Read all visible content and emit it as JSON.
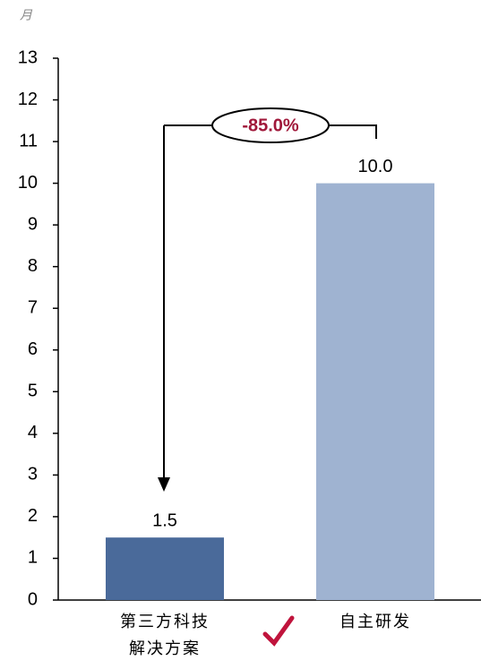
{
  "chart_data": {
    "type": "bar",
    "subtitle": "月",
    "categories": [
      "第三方科技\n解决方案",
      "自主研发"
    ],
    "values": [
      1.5,
      10.0
    ],
    "value_labels": [
      "1.5",
      "10.0"
    ],
    "colors": [
      "#4a6a9a",
      "#9fb3d1"
    ],
    "ylim": [
      0,
      13
    ],
    "yticks": [
      0,
      1,
      2,
      3,
      4,
      5,
      6,
      7,
      8,
      9,
      10,
      11,
      12,
      13
    ],
    "annotation": "-85.0%",
    "annotation_color": "#a0183a"
  }
}
